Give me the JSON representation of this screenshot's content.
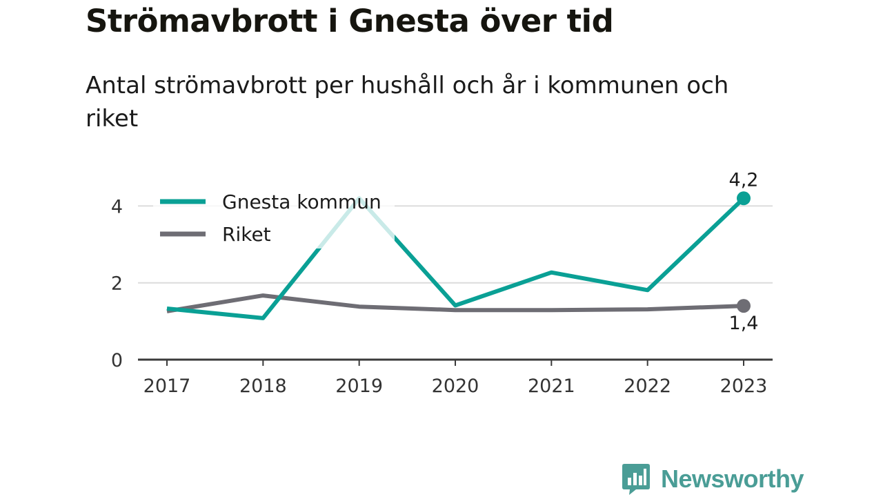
{
  "title": "Strömavbrott i Gnesta över tid",
  "subtitle": "Antal strömavbrott per hushåll och år i kommunen och riket",
  "brand": {
    "name": "Newsworthy",
    "icon": "newsworthy-logo-icon",
    "color": "#4a9d96"
  },
  "chart_data": {
    "type": "line",
    "x": [
      "2017",
      "2018",
      "2019",
      "2020",
      "2021",
      "2022",
      "2023"
    ],
    "ylim": [
      0,
      4.6
    ],
    "yticks": [
      0,
      2,
      4
    ],
    "grid": true,
    "legend_position": "top-left",
    "series": [
      {
        "name": "Gnesta kommun",
        "color": "#0aa095",
        "values": [
          1.33,
          1.08,
          4.2,
          1.41,
          2.27,
          1.81,
          4.2
        ],
        "end_label": "4,2"
      },
      {
        "name": "Riket",
        "color": "#6e6d74",
        "values": [
          1.26,
          1.67,
          1.38,
          1.29,
          1.29,
          1.31,
          1.4
        ],
        "end_label": "1,4"
      }
    ]
  }
}
